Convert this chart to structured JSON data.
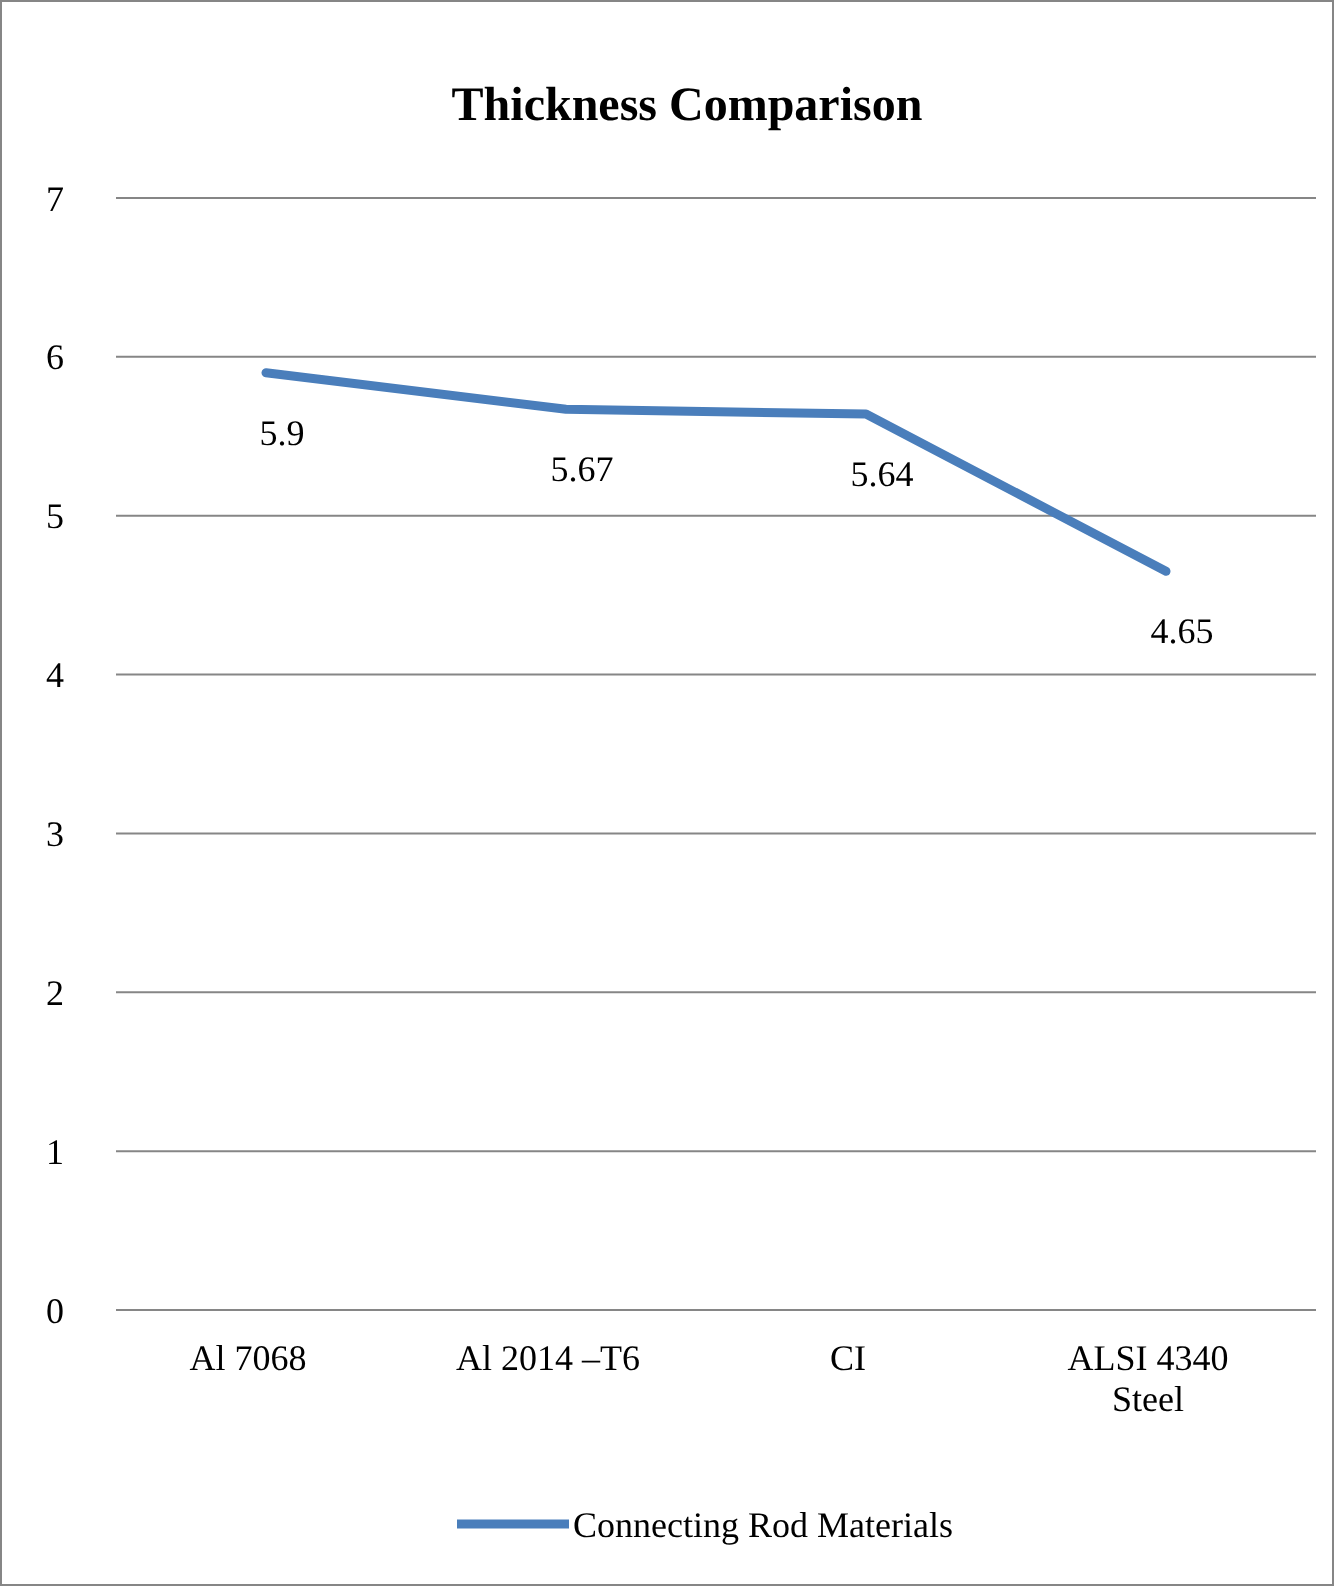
{
  "chart_data": {
    "type": "line",
    "title": "Thickness Comparison",
    "categories": [
      "Al 7068",
      "Al 2014 –T6",
      "CI",
      "ALSI 4340 Steel"
    ],
    "series": [
      {
        "name": "Connecting Rod Materials",
        "color": "#4a7ebb",
        "values": [
          5.9,
          5.67,
          5.64,
          4.65
        ]
      }
    ],
    "ylim": [
      0,
      7
    ],
    "yticks": [
      0,
      1,
      2,
      3,
      4,
      5,
      6,
      7
    ],
    "grid": "y",
    "legend": "bottom",
    "data_labels": true,
    "marker": "none",
    "line_style": "solid"
  }
}
